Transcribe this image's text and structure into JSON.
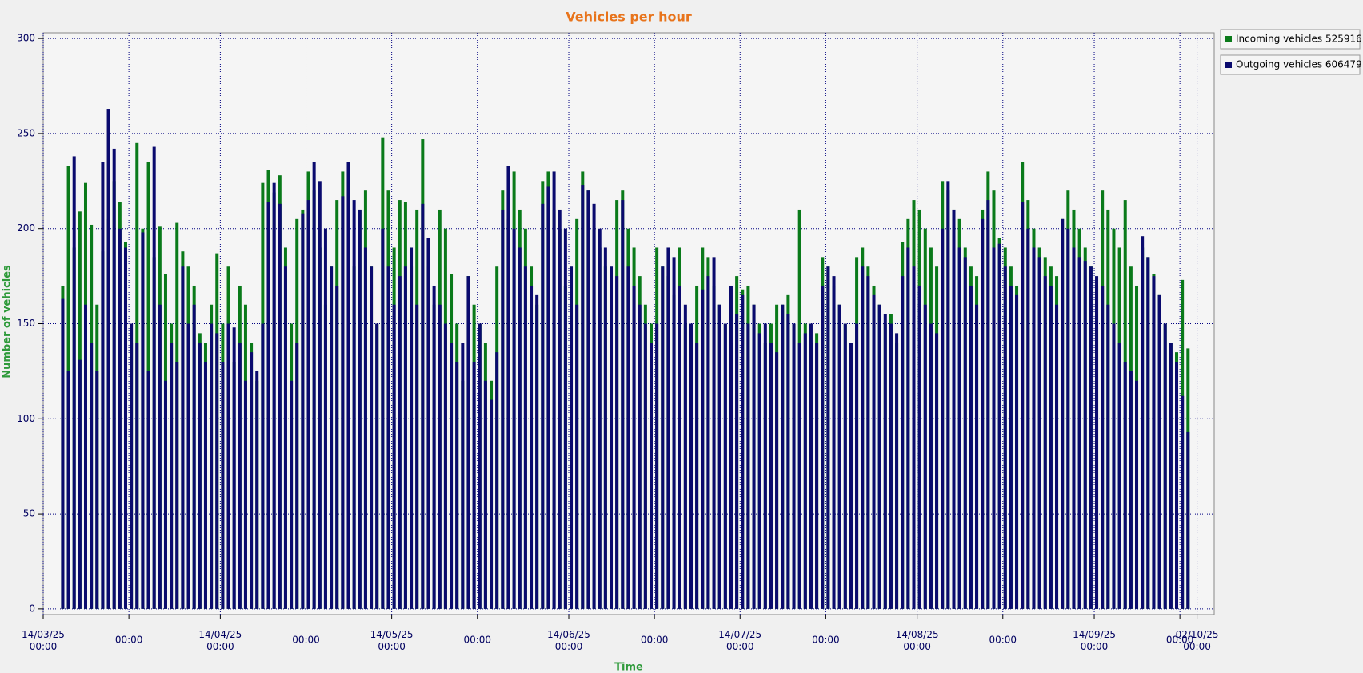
{
  "chart_data": {
    "type": "bar",
    "title": "Vehicles per hour",
    "x_label": "Time",
    "y_label": "Number of vehicles",
    "x": [
      "17/03/25",
      "18/03/25",
      "19/03/25",
      "20/03/25",
      "21/03/25",
      "22/03/25",
      "23/03/25",
      "24/03/25",
      "25/03/25",
      "26/03/25",
      "27/03/25",
      "28/03/25",
      "29/03/25",
      "30/03/25",
      "31/03/25",
      "01/04/25",
      "02/04/25",
      "03/04/25",
      "04/04/25",
      "05/04/25",
      "06/04/25",
      "07/04/25",
      "08/04/25",
      "09/04/25",
      "10/04/25",
      "11/04/25",
      "12/04/25",
      "13/04/25",
      "14/04/25",
      "15/04/25",
      "16/04/25",
      "17/04/25",
      "18/04/25",
      "19/04/25",
      "20/04/25",
      "21/04/25",
      "22/04/25",
      "23/04/25",
      "24/04/25",
      "25/04/25",
      "26/04/25",
      "27/04/25",
      "28/04/25",
      "29/04/25",
      "30/04/25",
      "01/05/25",
      "02/05/25",
      "03/05/25",
      "04/05/25",
      "05/05/25",
      "06/05/25",
      "07/05/25",
      "08/05/25",
      "09/05/25",
      "10/05/25",
      "11/05/25",
      "12/05/25",
      "13/05/25",
      "14/05/25",
      "15/05/25",
      "16/05/25",
      "17/05/25",
      "18/05/25",
      "19/05/25",
      "20/05/25",
      "21/05/25",
      "22/05/25",
      "23/05/25",
      "24/05/25",
      "25/05/25",
      "26/05/25",
      "27/05/25",
      "28/05/25",
      "29/05/25",
      "30/05/25",
      "31/05/25",
      "01/06/25",
      "02/06/25",
      "03/06/25",
      "04/06/25",
      "05/06/25",
      "06/06/25",
      "07/06/25",
      "08/06/25",
      "09/06/25",
      "10/06/25",
      "11/06/25",
      "12/06/25",
      "13/06/25",
      "14/06/25",
      "15/06/25",
      "16/06/25",
      "17/06/25",
      "18/06/25",
      "19/06/25",
      "20/06/25",
      "21/06/25",
      "22/06/25",
      "23/06/25",
      "24/06/25",
      "25/06/25",
      "26/06/25",
      "27/06/25",
      "28/06/25",
      "29/06/25",
      "30/06/25",
      "01/07/25",
      "02/07/25",
      "03/07/25",
      "04/07/25",
      "05/07/25",
      "06/07/25",
      "07/07/25",
      "08/07/25",
      "09/07/25",
      "10/07/25",
      "11/07/25",
      "12/07/25",
      "13/07/25",
      "14/07/25",
      "15/07/25",
      "16/07/25",
      "17/07/25",
      "18/07/25",
      "19/07/25",
      "20/07/25",
      "21/07/25",
      "22/07/25",
      "23/07/25",
      "24/07/25",
      "25/07/25",
      "26/07/25",
      "27/07/25",
      "28/07/25",
      "29/07/25",
      "30/07/25",
      "31/07/25",
      "01/08/25",
      "02/08/25",
      "03/08/25",
      "04/08/25",
      "05/08/25",
      "06/08/25",
      "07/08/25",
      "08/08/25",
      "09/08/25",
      "10/08/25",
      "11/08/25",
      "12/08/25",
      "13/08/25",
      "14/08/25",
      "15/08/25",
      "16/08/25",
      "17/08/25",
      "18/08/25",
      "19/08/25",
      "20/08/25",
      "21/08/25",
      "22/08/25",
      "23/08/25",
      "24/08/25",
      "25/08/25",
      "26/08/25",
      "27/08/25",
      "28/08/25",
      "29/08/25",
      "30/08/25",
      "31/08/25",
      "01/09/25",
      "02/09/25",
      "03/09/25",
      "04/09/25",
      "05/09/25",
      "06/09/25",
      "07/09/25",
      "08/09/25",
      "09/09/25",
      "10/09/25",
      "11/09/25",
      "12/09/25",
      "13/09/25",
      "14/09/25",
      "15/09/25",
      "16/09/25",
      "17/09/25",
      "18/09/25",
      "19/09/25",
      "20/09/25",
      "21/09/25",
      "22/09/25",
      "23/09/25",
      "24/09/25",
      "25/09/25",
      "26/09/25",
      "27/09/25",
      "28/09/25",
      "29/09/25",
      "30/09/25"
    ],
    "series": [
      {
        "name": "Incoming vehicles 525916",
        "color": "#0a7a1a",
        "values": [
          170,
          233,
          190,
          209,
          224,
          202,
          160,
          188,
          205,
          225,
          214,
          193,
          140,
          245,
          200,
          235,
          185,
          201,
          176,
          150,
          203,
          188,
          180,
          170,
          145,
          140,
          160,
          187,
          150,
          180,
          130,
          170,
          160,
          140,
          120,
          224,
          231,
          219,
          228,
          190,
          150,
          205,
          210,
          230,
          220,
          190,
          160,
          180,
          215,
          230,
          230,
          180,
          210,
          220,
          180,
          150,
          248,
          220,
          190,
          215,
          214,
          180,
          210,
          247,
          180,
          160,
          210,
          200,
          176,
          150,
          120,
          175,
          160,
          150,
          140,
          120,
          180,
          220,
          205,
          230,
          210,
          200,
          180,
          160,
          225,
          230,
          210,
          200,
          170,
          150,
          205,
          230,
          220,
          200,
          190,
          180,
          160,
          215,
          220,
          200,
          190,
          175,
          160,
          150,
          190,
          180,
          175,
          165,
          190,
          150,
          140,
          170,
          190,
          185,
          170,
          160,
          150,
          140,
          175,
          168,
          170,
          160,
          150,
          140,
          150,
          160,
          160,
          165,
          150,
          210,
          150,
          140,
          145,
          185,
          180,
          170,
          160,
          150,
          140,
          185,
          190,
          180,
          170,
          160,
          150,
          155,
          140,
          193,
          205,
          215,
          210,
          200,
          190,
          180,
          225,
          220,
          210,
          205,
          190,
          180,
          175,
          210,
          230,
          220,
          195,
          190,
          180,
          170,
          235,
          215,
          200,
          190,
          185,
          180,
          175,
          205,
          220,
          210,
          200,
          190,
          180,
          170,
          220,
          210,
          200,
          190,
          215,
          180,
          170,
          190,
          185,
          176,
          165,
          150,
          140,
          135,
          173,
          137
        ]
      },
      {
        "name": "Outgoing vehicles 606479",
        "color": "#0a0a6e",
        "values": [
          163,
          125,
          238,
          131,
          160,
          140,
          125,
          235,
          263,
          242,
          200,
          190,
          150,
          140,
          198,
          125,
          243,
          160,
          120,
          140,
          130,
          180,
          150,
          160,
          140,
          130,
          150,
          145,
          130,
          150,
          148,
          140,
          120,
          135,
          125,
          150,
          214,
          224,
          213,
          180,
          120,
          140,
          208,
          215,
          235,
          225,
          200,
          180,
          170,
          217,
          235,
          215,
          210,
          190,
          180,
          150,
          200,
          180,
          160,
          175,
          180,
          190,
          160,
          213,
          195,
          170,
          160,
          150,
          140,
          130,
          140,
          175,
          130,
          150,
          120,
          110,
          135,
          210,
          233,
          200,
          190,
          180,
          170,
          165,
          213,
          222,
          230,
          210,
          200,
          180,
          160,
          223,
          220,
          213,
          200,
          190,
          180,
          175,
          215,
          180,
          170,
          160,
          150,
          140,
          150,
          180,
          190,
          185,
          170,
          160,
          150,
          140,
          168,
          175,
          185,
          160,
          150,
          170,
          155,
          165,
          150,
          160,
          145,
          150,
          140,
          135,
          160,
          155,
          150,
          140,
          145,
          150,
          140,
          170,
          180,
          175,
          160,
          150,
          140,
          150,
          180,
          175,
          165,
          160,
          155,
          150,
          145,
          175,
          190,
          180,
          170,
          160,
          150,
          145,
          200,
          225,
          210,
          190,
          185,
          170,
          160,
          205,
          215,
          190,
          192,
          180,
          170,
          165,
          214,
          200,
          190,
          185,
          175,
          170,
          160,
          205,
          200,
          190,
          185,
          183,
          180,
          175,
          170,
          160,
          150,
          140,
          130,
          125,
          120,
          196,
          185,
          175,
          165,
          150,
          140,
          130,
          112,
          93
        ]
      }
    ],
    "xlim": [
      "14/03/25",
      "05/10/25"
    ],
    "xticks": [
      {
        "value": "14/03/25",
        "label": "14/03/25 00:00"
      },
      {
        "value": "29/03/25",
        "label": "00:00"
      },
      {
        "value": "14/04/25",
        "label": "14/04/25 00:00"
      },
      {
        "value": "29/04/25",
        "label": "00:00"
      },
      {
        "value": "14/05/25",
        "label": "14/05/25 00:00"
      },
      {
        "value": "29/05/25",
        "label": "00:00"
      },
      {
        "value": "14/06/25",
        "label": "14/06/25 00:00"
      },
      {
        "value": "29/06/25",
        "label": "00:00"
      },
      {
        "value": "14/07/25",
        "label": "14/07/25 00:00"
      },
      {
        "value": "29/07/25",
        "label": "00:00"
      },
      {
        "value": "14/08/25",
        "label": "14/08/25 00:00"
      },
      {
        "value": "29/08/25",
        "label": "00:00"
      },
      {
        "value": "14/09/25",
        "label": "14/09/25 00:00"
      },
      {
        "value": "29/09/25",
        "label": "00:00"
      },
      {
        "value": "02/10/25",
        "label": "02/10/25 00:00"
      }
    ],
    "ylim": [
      -3,
      303
    ],
    "yticks": [
      0,
      50,
      100,
      150,
      200,
      250,
      300
    ],
    "grid": true
  }
}
